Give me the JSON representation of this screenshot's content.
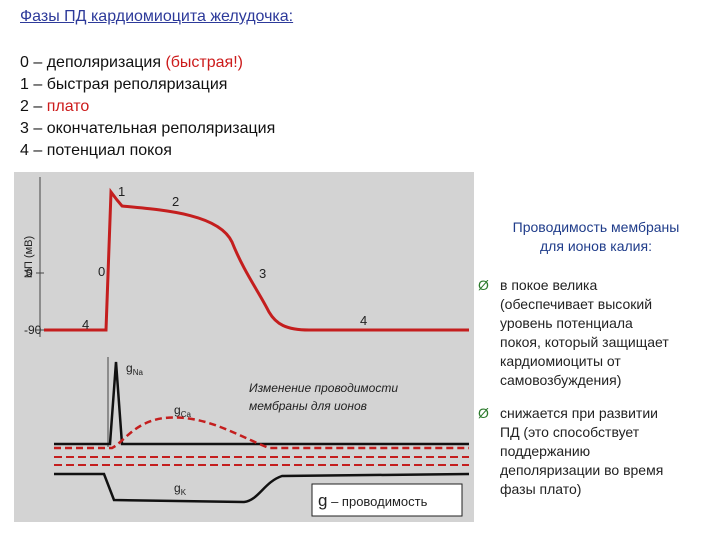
{
  "title": "Фазы ПД кардиомиоцита желудочка:",
  "phases": [
    {
      "num": "0",
      "sep": " – ",
      "text": "деполяризация ",
      "extra": "(быстрая!)"
    },
    {
      "num": "1",
      "sep": " – ",
      "text": "быстрая реполяризация",
      "extra": ""
    },
    {
      "num": "2",
      "sep": " – ",
      "text": "",
      "extra": "плато"
    },
    {
      "num": "3",
      "sep": " – ",
      "text": "окончательная реполяризация",
      "extra": ""
    },
    {
      "num": "4",
      "sep": " – ",
      "text": "потенциал покоя",
      "extra": ""
    }
  ],
  "figure": {
    "ylabel": "МП (мВ)",
    "tick_top": "0",
    "tick_bottom": "-90",
    "phase_labels": [
      "1",
      "2",
      "0",
      "3",
      "4",
      "4"
    ],
    "g_na": {
      "g": "g",
      "sub": "Na"
    },
    "g_ca": {
      "g": "g",
      "sub": "Ca"
    },
    "g_k": {
      "g": "g",
      "sub": "K"
    },
    "annotation_line1": "Изменение проводимости",
    "annotation_line2": "мембраны для ионов",
    "legend_g": "g",
    "legend_text": " – проводимость"
  },
  "right_panel": {
    "heading_line1": "Проводимость мембраны",
    "heading_line2": "для ионов калия:",
    "bullet_symbol": "Ø",
    "bullets": [
      [
        "в покое велика",
        "(обеспечивает высокий",
        "уровень потенциала",
        "покоя, который защищает",
        "кардиомиоциты от",
        "самовозбуждения)"
      ],
      [
        "снижается при развитии",
        "ПД (это способствует",
        "поддержанию",
        "деполяризации во время",
        "фазы плато)"
      ]
    ]
  },
  "colors": {
    "title": "#2d3a9a",
    "red": "#cc1b1b",
    "plot_bg": "#d3d3d3",
    "heading": "#1f3c8a"
  }
}
